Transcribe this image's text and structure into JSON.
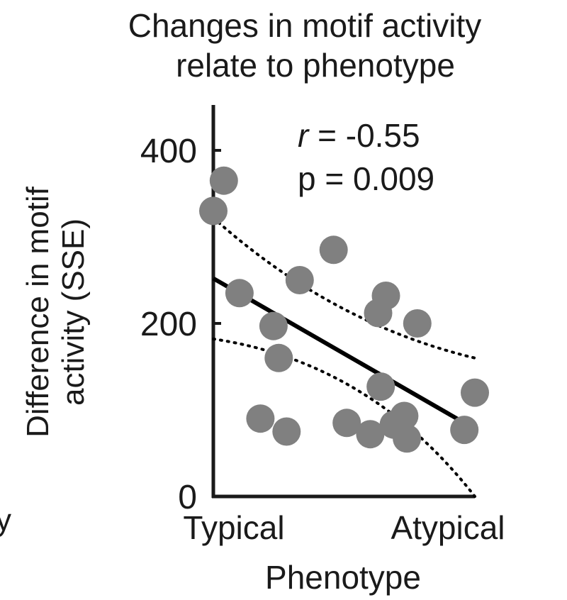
{
  "chart_data": {
    "type": "scatter",
    "title": [
      "Changes in motif activity",
      "relate to phenotype"
    ],
    "xlabel": "Phenotype",
    "ylabel": [
      "Difference in motif",
      "activity (SSE)"
    ],
    "x_tick_labels": [
      "Typical",
      "Atypical"
    ],
    "y_ticks": [
      0,
      200,
      400
    ],
    "ylim": [
      0,
      440
    ],
    "xlim": [
      0,
      1
    ],
    "stats": {
      "r_symbol": "r",
      "r_text": " = -0.55",
      "p_text": "p = 0.009"
    },
    "edge_glyph": "y",
    "colors": {
      "points": "#808080",
      "fit": "#000000",
      "axis": "#1a1a1a"
    },
    "points": [
      {
        "x": 0.04,
        "y": 365
      },
      {
        "x": 0.0,
        "y": 330
      },
      {
        "x": 0.1,
        "y": 235
      },
      {
        "x": 0.33,
        "y": 250
      },
      {
        "x": 0.46,
        "y": 285
      },
      {
        "x": 0.23,
        "y": 197
      },
      {
        "x": 0.25,
        "y": 160
      },
      {
        "x": 0.18,
        "y": 90
      },
      {
        "x": 0.28,
        "y": 75
      },
      {
        "x": 0.66,
        "y": 232
      },
      {
        "x": 0.63,
        "y": 212
      },
      {
        "x": 0.78,
        "y": 200
      },
      {
        "x": 0.64,
        "y": 127
      },
      {
        "x": 0.51,
        "y": 85
      },
      {
        "x": 0.6,
        "y": 72
      },
      {
        "x": 0.69,
        "y": 83
      },
      {
        "x": 0.73,
        "y": 93
      },
      {
        "x": 0.74,
        "y": 67
      },
      {
        "x": 0.96,
        "y": 77
      },
      {
        "x": 1.0,
        "y": 120
      }
    ],
    "fit_line": [
      {
        "x": 0.0,
        "y": 252
      },
      {
        "x": 0.96,
        "y": 85
      }
    ],
    "ci_upper": [
      {
        "x": 0.0,
        "y": 322
      },
      {
        "x": 0.5,
        "y": 210
      },
      {
        "x": 1.0,
        "y": 160
      }
    ],
    "ci_lower": [
      {
        "x": 0.0,
        "y": 182
      },
      {
        "x": 0.5,
        "y": 115
      },
      {
        "x": 1.0,
        "y": 0
      }
    ]
  }
}
